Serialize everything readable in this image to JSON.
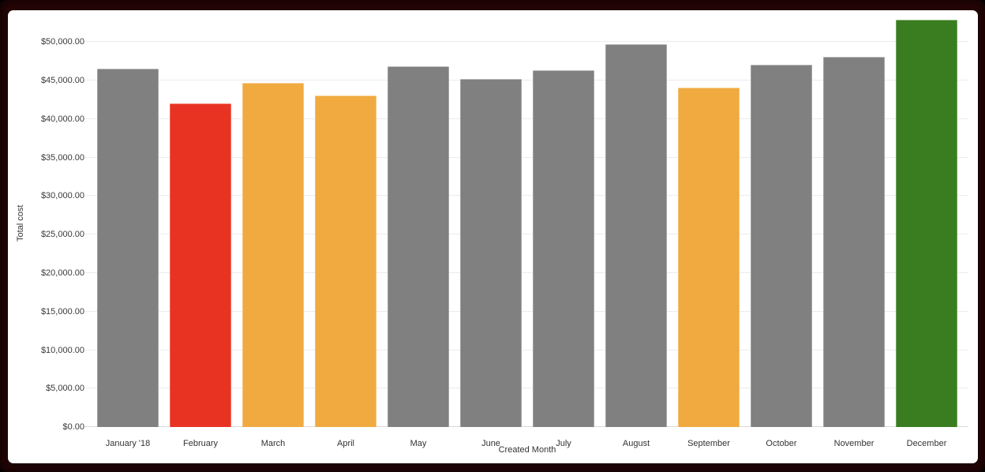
{
  "window": {
    "frame_color": "#2a0606",
    "panel_color": "#ffffff"
  },
  "chart_data": {
    "type": "bar",
    "title": "",
    "xlabel": "Created Month",
    "ylabel": "Total cost",
    "categories": [
      "January '18",
      "February",
      "March",
      "April",
      "May",
      "June",
      "July",
      "August",
      "September",
      "October",
      "November",
      "December"
    ],
    "values": [
      46500,
      42000,
      44750,
      43100,
      46900,
      45250,
      46350,
      49750,
      44100,
      47050,
      48100,
      52950
    ],
    "bar_colors": [
      "#808080",
      "#E83323",
      "#F0AA40",
      "#F0AA40",
      "#808080",
      "#808080",
      "#808080",
      "#808080",
      "#F0AA40",
      "#808080",
      "#808080",
      "#3A7D20"
    ],
    "palette": {
      "gray": "#808080",
      "red": "#E83323",
      "orange": "#F0AA40",
      "green": "#3A7D20"
    },
    "ylim": [
      0,
      53000
    ],
    "y_ticks": [
      {
        "value": 0,
        "label": "$0.00"
      },
      {
        "value": 5000,
        "label": "$5,000.00"
      },
      {
        "value": 10000,
        "label": "$10,000.00"
      },
      {
        "value": 15000,
        "label": "$15,000.00"
      },
      {
        "value": 20000,
        "label": "$20,000.00"
      },
      {
        "value": 25000,
        "label": "$25,000.00"
      },
      {
        "value": 30000,
        "label": "$30,000.00"
      },
      {
        "value": 35000,
        "label": "$35,000.00"
      },
      {
        "value": 40000,
        "label": "$40,000.00"
      },
      {
        "value": 45000,
        "label": "$45,000.00"
      },
      {
        "value": 50000,
        "label": "$50,000.00"
      }
    ],
    "grid": "horizontal",
    "legend": "none"
  }
}
